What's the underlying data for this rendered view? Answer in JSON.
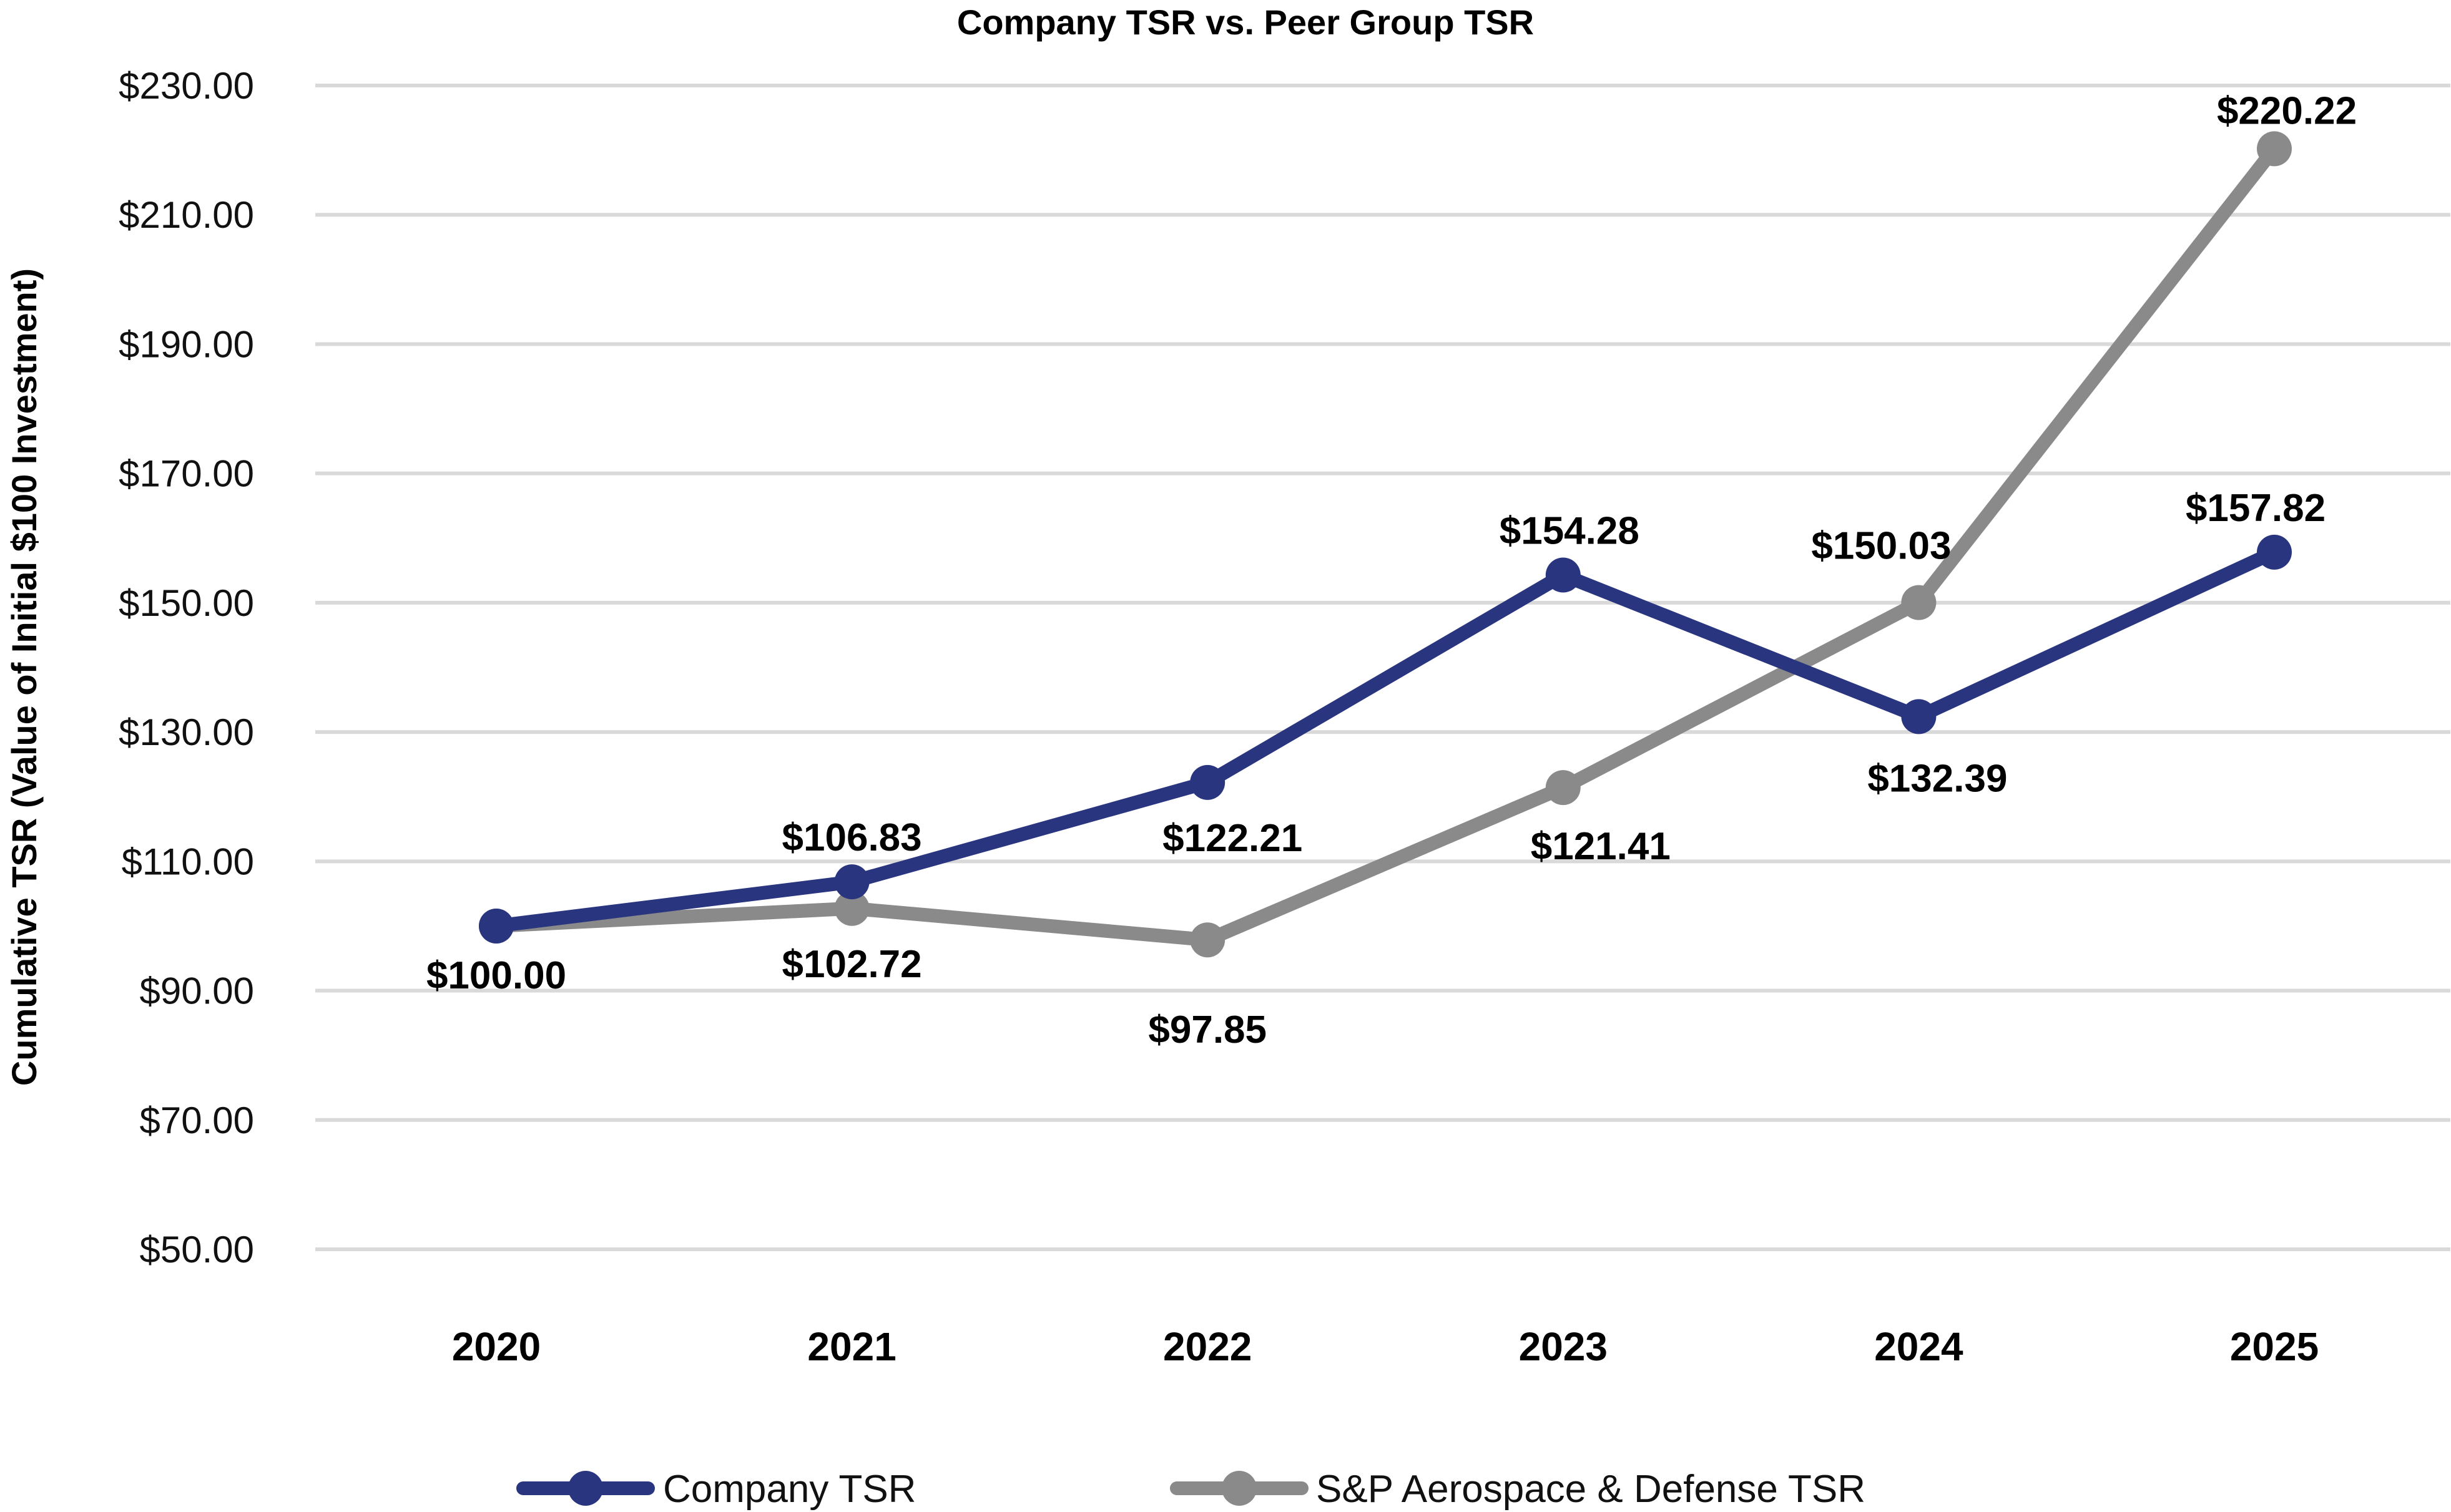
{
  "chart_data": {
    "type": "line",
    "title": "Company TSR vs. Peer Group TSR",
    "xlabel": "",
    "ylabel": "Cumulative TSR (Value of Initial $100 Investment)",
    "categories": [
      "2020",
      "2021",
      "2022",
      "2023",
      "2024",
      "2025"
    ],
    "ylim": [
      50,
      230
    ],
    "yticks": [
      50,
      70,
      90,
      110,
      130,
      150,
      170,
      190,
      210,
      230
    ],
    "ytick_labels": [
      "$50.00",
      "$70.00",
      "$90.00",
      "$110.00",
      "$130.00",
      "$150.00",
      "$170.00",
      "$190.00",
      "$210.00",
      "$230.00"
    ],
    "grid": true,
    "legend_position": "bottom-center",
    "series": [
      {
        "name": "Company TSR",
        "color": "#2a3580",
        "values": [
          100.0,
          106.83,
          122.21,
          154.28,
          132.39,
          157.82
        ],
        "labels": [
          "$100.00",
          "$106.83",
          "$122.21",
          "$154.28",
          "$132.39",
          "$157.82"
        ]
      },
      {
        "name": "S&P Aerospace & Defense TSR",
        "color": "#8a8a8a",
        "values": [
          100.0,
          102.72,
          97.85,
          121.41,
          150.03,
          220.22
        ],
        "labels": [
          "",
          "$102.72",
          "$97.85",
          "$121.41",
          "$150.03",
          "$220.22"
        ]
      }
    ]
  }
}
